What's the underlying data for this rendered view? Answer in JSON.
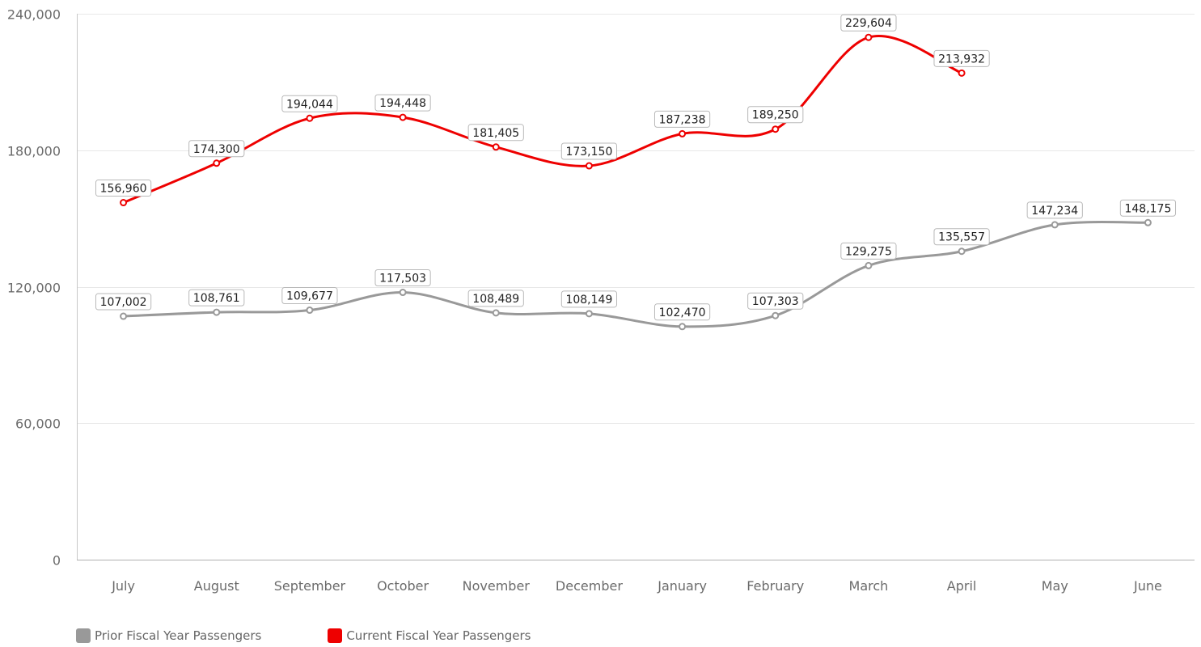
{
  "chart_data": {
    "type": "line",
    "categories": [
      "July",
      "August",
      "September",
      "October",
      "November",
      "December",
      "January",
      "February",
      "March",
      "April",
      "May",
      "June"
    ],
    "ylim": [
      0,
      240000
    ],
    "yticks": [
      0,
      60000,
      120000,
      180000,
      240000
    ],
    "grid": true,
    "legend_position": "bottom-left",
    "series": [
      {
        "name": "Prior Fiscal Year Passengers",
        "color": "#999999",
        "values": [
          107002,
          108761,
          109677,
          117503,
          108489,
          108149,
          102470,
          107303,
          129275,
          135557,
          147234,
          148175
        ]
      },
      {
        "name": "Current Fiscal Year Passengers",
        "color": "#ee0000",
        "values": [
          156960,
          174300,
          194044,
          194448,
          181405,
          173150,
          187238,
          189250,
          229604,
          213932,
          null,
          null
        ]
      }
    ]
  }
}
